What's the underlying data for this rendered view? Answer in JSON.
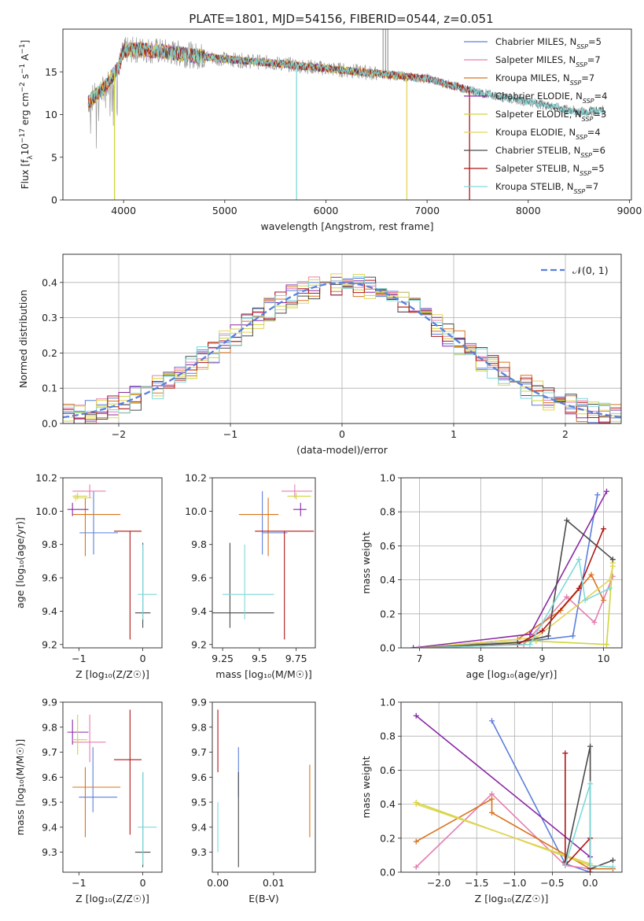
{
  "figure": {
    "title": "PLATE=1801, MJD=54156, FIBERID=0544, z=0.051"
  },
  "colors": {
    "Chabrier MILES": "#5b7fdc",
    "Salpeter MILES": "#e57fb0",
    "Kroupa MILES": "#d9731d",
    "Chabrier ELODIE": "#8a2aa5",
    "Salpeter ELODIE": "#cfd53a",
    "Kroupa ELODIE": "#e3d45a",
    "Chabrier STELIB": "#4a4a4a",
    "Salpeter STELIB": "#b01515",
    "Kroupa STELIB": "#7fd9d9"
  },
  "chart_data": [
    {
      "id": "spectrum",
      "type": "line",
      "title": "PLATE=1801, MJD=54156, FIBERID=0544, z=0.051",
      "xlabel": "wavelength [Angstrom, rest frame]",
      "ylabel_parts": [
        "Flux [f",
        "λ",
        "10",
        "−17",
        " erg cm",
        "−2",
        " s",
        "−1",
        " A",
        "−1",
        "]"
      ],
      "xlim": [
        3400,
        9020
      ],
      "ylim": [
        0,
        20
      ],
      "xticks": [
        4000,
        5000,
        6000,
        7000,
        8000,
        9000
      ],
      "yticks": [
        0,
        5,
        10,
        15
      ],
      "grid": false,
      "legend_position": "top-right",
      "legend": [
        {
          "name": "Chabrier MILES",
          "nssp": "5"
        },
        {
          "name": "Salpeter MILES",
          "nssp": "7"
        },
        {
          "name": "Kroupa MILES",
          "nssp": "7"
        },
        {
          "name": "Chabrier ELODIE",
          "nssp": "4"
        },
        {
          "name": "Salpeter ELODIE",
          "nssp": "3"
        },
        {
          "name": "Kroupa ELODIE",
          "nssp": "4"
        },
        {
          "name": "Chabrier STELIB",
          "nssp": "6"
        },
        {
          "name": "Salpeter STELIB",
          "nssp": "5"
        },
        {
          "name": "Kroupa STELIB",
          "nssp": "7"
        }
      ],
      "data_color": "#9a9a9a",
      "continuum": [
        {
          "x": 3650,
          "y": 11.5
        },
        {
          "x": 3800,
          "y": 13.0
        },
        {
          "x": 3950,
          "y": 15.5
        },
        {
          "x": 4000,
          "y": 17.5
        },
        {
          "x": 4200,
          "y": 17.6
        },
        {
          "x": 4500,
          "y": 17.2
        },
        {
          "x": 5000,
          "y": 16.5
        },
        {
          "x": 5500,
          "y": 16.0
        },
        {
          "x": 6000,
          "y": 15.4
        },
        {
          "x": 6500,
          "y": 14.8
        },
        {
          "x": 7000,
          "y": 14.2
        },
        {
          "x": 7500,
          "y": 12.6
        },
        {
          "x": 8000,
          "y": 11.5
        },
        {
          "x": 8500,
          "y": 10.3
        },
        {
          "x": 8750,
          "y": 10.5
        }
      ],
      "model_end_wavelength": {
        "Chabrier MILES": 7420,
        "Salpeter MILES": 7420,
        "Kroupa MILES": 7420,
        "Chabrier ELODIE": 6800,
        "Salpeter ELODIE": 6800,
        "Kroupa ELODIE": 6800,
        "Chabrier STELIB": 8750,
        "Salpeter STELIB": 7420,
        "Kroupa STELIB": 8750
      },
      "dips": [
        {
          "x": 3910,
          "y": 0,
          "series": "Salpeter ELODIE"
        },
        {
          "x": 5710,
          "y": 0,
          "series": "Kroupa STELIB"
        },
        {
          "x": 6800,
          "y": 0,
          "series": "Kroupa ELODIE"
        },
        {
          "x": 7420,
          "y": 0,
          "series": "Salpeter STELIB"
        }
      ]
    },
    {
      "id": "residuals",
      "type": "line",
      "xlabel": "(data-model)/error",
      "ylabel": "Normed distribution",
      "xlim": [
        -2.5,
        2.5
      ],
      "ylim": [
        0,
        0.48
      ],
      "xticks": [
        -2,
        -1,
        0,
        1,
        2
      ],
      "yticks": [
        0.0,
        0.1,
        0.2,
        0.3,
        0.4
      ],
      "grid": true,
      "legend_position": "top-right",
      "legend_label": "𝒩(0, 1)",
      "reference": {
        "name": "𝒩(0, 1)",
        "mean": 0,
        "sigma": 1,
        "color": "#5b7fdc"
      },
      "bin_width": 0.1
    },
    {
      "id": "age-vs-Z",
      "type": "scatter",
      "xlabel": "Z [log₁₀(Z/Z☉)]",
      "ylabel": "age  [log₁₀(age/yr)]",
      "xlim": [
        -1.25,
        0.3
      ],
      "ylim": [
        9.18,
        10.2
      ],
      "xticks": [
        -1,
        0
      ],
      "yticks": [
        9.2,
        9.4,
        9.6,
        9.8,
        10.0,
        10.2
      ],
      "grid": false,
      "points": [
        {
          "series": "Chabrier MILES",
          "x": -0.77,
          "y": 9.87,
          "xerr": [
            0.22,
            0.38
          ],
          "yerr": [
            0.13,
            0.25
          ]
        },
        {
          "series": "Salpeter MILES",
          "x": -0.83,
          "y": 10.12,
          "xerr": [
            0.27,
            0.25
          ],
          "yerr": [
            0.04,
            0.04
          ]
        },
        {
          "series": "Kroupa MILES",
          "x": -0.9,
          "y": 9.98,
          "xerr": [
            0.2,
            0.55
          ],
          "yerr": [
            0.25,
            0.1
          ]
        },
        {
          "series": "Chabrier ELODIE",
          "x": -1.1,
          "y": 10.01,
          "xerr": [
            0.08,
            0.25
          ],
          "yerr": [
            0.04,
            0.04
          ]
        },
        {
          "series": "Salpeter ELODIE",
          "x": -1.02,
          "y": 10.09,
          "xerr": [
            0.08,
            0.15
          ],
          "yerr": [
            0.02,
            0.02
          ]
        },
        {
          "series": "Chabrier STELIB",
          "x": 0.0,
          "y": 9.39,
          "xerr": [
            0.12,
            0.12
          ],
          "yerr": [
            0.09,
            0.42
          ]
        },
        {
          "series": "Salpeter STELIB",
          "x": -0.2,
          "y": 9.88,
          "xerr": [
            0.25,
            0.18
          ],
          "yerr": [
            0.65,
            0.0
          ]
        },
        {
          "series": "Kroupa STELIB",
          "x": 0.0,
          "y": 9.5,
          "xerr": [
            0.08,
            0.22
          ],
          "yerr": [
            0.15,
            0.3
          ]
        },
        {
          "series": "Kroupa ELODIE",
          "x": -1.05,
          "y": 10.08,
          "xerr": [
            0.04,
            0.25
          ],
          "yerr": [
            0.02,
            0.02
          ]
        }
      ]
    },
    {
      "id": "age-vs-mass",
      "type": "scatter",
      "xlabel": "mass [log₁₀(M/M☉)]",
      "ylabel": "",
      "xlim": [
        9.18,
        9.88
      ],
      "ylim": [
        9.18,
        10.2
      ],
      "xticks": [
        9.25,
        9.5,
        9.75
      ],
      "yticks": [
        9.2,
        9.4,
        9.6,
        9.8,
        10.0,
        10.2
      ],
      "grid": false,
      "points": [
        {
          "series": "Chabrier MILES",
          "x": 9.52,
          "y": 9.87,
          "xerr": [
            0.0,
            0.17
          ],
          "yerr": [
            0.13,
            0.25
          ]
        },
        {
          "series": "Salpeter MILES",
          "x": 9.74,
          "y": 10.12,
          "xerr": [
            0.09,
            0.12
          ],
          "yerr": [
            0.04,
            0.04
          ]
        },
        {
          "series": "Kroupa MILES",
          "x": 9.56,
          "y": 9.98,
          "xerr": [
            0.2,
            0.07
          ],
          "yerr": [
            0.25,
            0.1
          ]
        },
        {
          "series": "Chabrier ELODIE",
          "x": 9.78,
          "y": 10.01,
          "xerr": [
            0.05,
            0.04
          ],
          "yerr": [
            0.04,
            0.04
          ]
        },
        {
          "series": "Salpeter ELODIE",
          "x": 9.75,
          "y": 10.09,
          "xerr": [
            0.06,
            0.1
          ],
          "yerr": [
            0.02,
            0.02
          ]
        },
        {
          "series": "Chabrier STELIB",
          "x": 9.3,
          "y": 9.39,
          "xerr": [
            0.22,
            0.3
          ],
          "yerr": [
            0.09,
            0.42
          ]
        },
        {
          "series": "Salpeter STELIB",
          "x": 9.67,
          "y": 9.88,
          "xerr": [
            0.2,
            0.2
          ],
          "yerr": [
            0.65,
            0.0
          ]
        },
        {
          "series": "Kroupa STELIB",
          "x": 9.4,
          "y": 9.5,
          "xerr": [
            0.15,
            0.2
          ],
          "yerr": [
            0.15,
            0.3
          ]
        }
      ]
    },
    {
      "id": "mass-weight-vs-age",
      "type": "line",
      "xlabel": "age  [log₁₀(age/yr)]",
      "ylabel": "mass weight",
      "xlim": [
        6.7,
        10.3
      ],
      "ylim": [
        0,
        1
      ],
      "xticks": [
        7,
        8,
        9,
        10
      ],
      "yticks": [
        0.0,
        0.2,
        0.4,
        0.6,
        0.8,
        1.0
      ],
      "grid": true,
      "series": [
        {
          "name": "Chabrier MILES",
          "x": [
            6.9,
            8.8,
            9.5,
            9.9
          ],
          "y": [
            0.0,
            0.04,
            0.07,
            0.9
          ]
        },
        {
          "name": "Salpeter MILES",
          "x": [
            7.0,
            8.7,
            9.4,
            9.85,
            10.15
          ],
          "y": [
            0.0,
            0.02,
            0.3,
            0.15,
            0.42
          ]
        },
        {
          "name": "Kroupa MILES",
          "x": [
            7.0,
            8.6,
            9.3,
            9.8,
            10.0
          ],
          "y": [
            0.0,
            0.05,
            0.22,
            0.43,
            0.28
          ]
        },
        {
          "name": "Chabrier ELODIE",
          "x": [
            6.9,
            8.8,
            10.05
          ],
          "y": [
            0.0,
            0.08,
            0.92
          ]
        },
        {
          "name": "Salpeter ELODIE",
          "x": [
            7.0,
            8.9,
            10.05,
            10.15
          ],
          "y": [
            0.0,
            0.04,
            0.02,
            0.5
          ]
        },
        {
          "name": "Kroupa ELODIE",
          "x": [
            7.0,
            8.9,
            10.1,
            10.15
          ],
          "y": [
            0.0,
            0.06,
            0.4,
            0.48
          ]
        },
        {
          "name": "Chabrier STELIB",
          "x": [
            7.0,
            8.6,
            9.1,
            9.4,
            10.15
          ],
          "y": [
            0.0,
            0.03,
            0.07,
            0.75,
            0.52
          ]
        },
        {
          "name": "Salpeter STELIB",
          "x": [
            7.0,
            8.6,
            9.0,
            9.6,
            10.0
          ],
          "y": [
            0.0,
            0.02,
            0.1,
            0.35,
            0.7
          ]
        },
        {
          "name": "Kroupa STELIB",
          "x": [
            7.0,
            8.8,
            9.6,
            9.7,
            10.1
          ],
          "y": [
            0.0,
            0.02,
            0.52,
            0.28,
            0.35
          ]
        }
      ]
    },
    {
      "id": "mass-vs-Z",
      "type": "scatter",
      "xlabel": "Z [log₁₀(Z/Z☉)]",
      "ylabel": "mass [log₁₀(M/M☉)]",
      "xlim": [
        -1.25,
        0.3
      ],
      "ylim": [
        9.22,
        9.9
      ],
      "xticks": [
        -1,
        0
      ],
      "yticks": [
        9.3,
        9.4,
        9.5,
        9.6,
        9.7,
        9.8,
        9.9
      ],
      "grid": false,
      "points": [
        {
          "series": "Chabrier MILES",
          "x": -0.78,
          "y": 9.52,
          "xerr": [
            0.22,
            0.38
          ],
          "yerr": [
            0.06,
            0.2
          ]
        },
        {
          "series": "Salpeter MILES",
          "x": -0.83,
          "y": 9.74,
          "xerr": [
            0.27,
            0.25
          ],
          "yerr": [
            0.08,
            0.11
          ]
        },
        {
          "series": "Kroupa MILES",
          "x": -0.9,
          "y": 9.56,
          "xerr": [
            0.2,
            0.55
          ],
          "yerr": [
            0.2,
            0.08
          ]
        },
        {
          "series": "Chabrier ELODIE",
          "x": -1.1,
          "y": 9.78,
          "xerr": [
            0.08,
            0.25
          ],
          "yerr": [
            0.05,
            0.05
          ]
        },
        {
          "series": "Salpeter ELODIE",
          "x": -1.02,
          "y": 9.75,
          "xerr": [
            0.08,
            0.15
          ],
          "yerr": [
            0.06,
            0.1
          ]
        },
        {
          "series": "Chabrier STELIB",
          "x": 0.0,
          "y": 9.3,
          "xerr": [
            0.12,
            0.12
          ],
          "yerr": [
            0.06,
            0.32
          ]
        },
        {
          "series": "Salpeter STELIB",
          "x": -0.2,
          "y": 9.67,
          "xerr": [
            0.25,
            0.18
          ],
          "yerr": [
            0.3,
            0.2
          ]
        },
        {
          "series": "Kroupa STELIB",
          "x": 0.0,
          "y": 9.4,
          "xerr": [
            0.08,
            0.22
          ],
          "yerr": [
            0.15,
            0.22
          ]
        }
      ]
    },
    {
      "id": "mass-vs-EBV",
      "type": "scatter",
      "xlabel": "E(B-V)",
      "ylabel": "",
      "xlim": [
        -0.001,
        0.0175
      ],
      "ylim": [
        9.22,
        9.9
      ],
      "xticks": [
        0.0,
        0.01
      ],
      "xtick_labels": [
        "0.00",
        "0.01"
      ],
      "yticks": [
        9.3,
        9.4,
        9.5,
        9.6,
        9.7,
        9.8,
        9.9
      ],
      "grid": false,
      "points": [
        {
          "series": "Salpeter STELIB",
          "x": 0.0,
          "y": 9.75,
          "yerr": [
            0.13,
            0.12
          ]
        },
        {
          "series": "Kroupa STELIB",
          "x": 0.0,
          "y": 9.4,
          "yerr": [
            0.1,
            0.1
          ]
        },
        {
          "series": "Chabrier MILES",
          "x": 0.0037,
          "y": 9.62,
          "yerr": [
            0.1,
            0.1
          ]
        },
        {
          "series": "Chabrier STELIB",
          "x": 0.0037,
          "y": 9.43,
          "yerr": [
            0.19,
            0.19
          ]
        },
        {
          "series": "Kroupa MILES",
          "x": 0.0165,
          "y": 9.5,
          "yerr": [
            0.14,
            0.15
          ]
        }
      ]
    },
    {
      "id": "mass-weight-vs-Z",
      "type": "line",
      "xlabel": "Z [log₁₀(Z/Z☉)]",
      "ylabel": "mass weight",
      "xlim": [
        -2.5,
        0.42
      ],
      "ylim": [
        0,
        1
      ],
      "xticks": [
        -2.0,
        -1.5,
        -1.0,
        -0.5,
        0.0
      ],
      "xtick_labels": [
        "−2.0",
        "−1.5",
        "−1.0",
        "−0.5",
        "0.0"
      ],
      "yticks": [
        0.0,
        0.2,
        0.4,
        0.6,
        0.8,
        1.0
      ],
      "grid": true,
      "series": [
        {
          "name": "Chabrier MILES",
          "x": [
            -1.3,
            -0.33,
            0.0
          ],
          "y": [
            0.89,
            0.05,
            0.0
          ]
        },
        {
          "name": "Salpeter MILES",
          "x": [
            -2.3,
            -1.3,
            -0.33,
            0.0
          ],
          "y": [
            0.03,
            0.46,
            0.04,
            0.02
          ]
        },
        {
          "name": "Kroupa MILES",
          "x": [
            -2.3,
            -1.3,
            -1.3,
            0.0,
            0.3
          ],
          "y": [
            0.18,
            0.43,
            0.35,
            0.02,
            0.02
          ]
        },
        {
          "name": "Chabrier ELODIE",
          "x": [
            -2.3,
            0.0
          ],
          "y": [
            0.92,
            0.09
          ]
        },
        {
          "name": "Salpeter ELODIE",
          "x": [
            -2.3,
            0.0
          ],
          "y": [
            0.41,
            0.04
          ]
        },
        {
          "name": "Kroupa ELODIE",
          "x": [
            -2.3,
            0.0
          ],
          "y": [
            0.4,
            0.05
          ]
        },
        {
          "name": "Chabrier STELIB",
          "x": [
            -0.33,
            0.0,
            0.0,
            0.3
          ],
          "y": [
            0.06,
            0.74,
            0.02,
            0.07
          ]
        },
        {
          "name": "Salpeter STELIB",
          "x": [
            -0.33,
            -0.33,
            0.0,
            0.0
          ],
          "y": [
            0.7,
            0.04,
            0.2,
            0.0
          ]
        },
        {
          "name": "Kroupa STELIB",
          "x": [
            -0.33,
            0.0,
            0.0,
            0.3
          ],
          "y": [
            0.04,
            0.52,
            0.04,
            0.03
          ]
        }
      ]
    }
  ]
}
